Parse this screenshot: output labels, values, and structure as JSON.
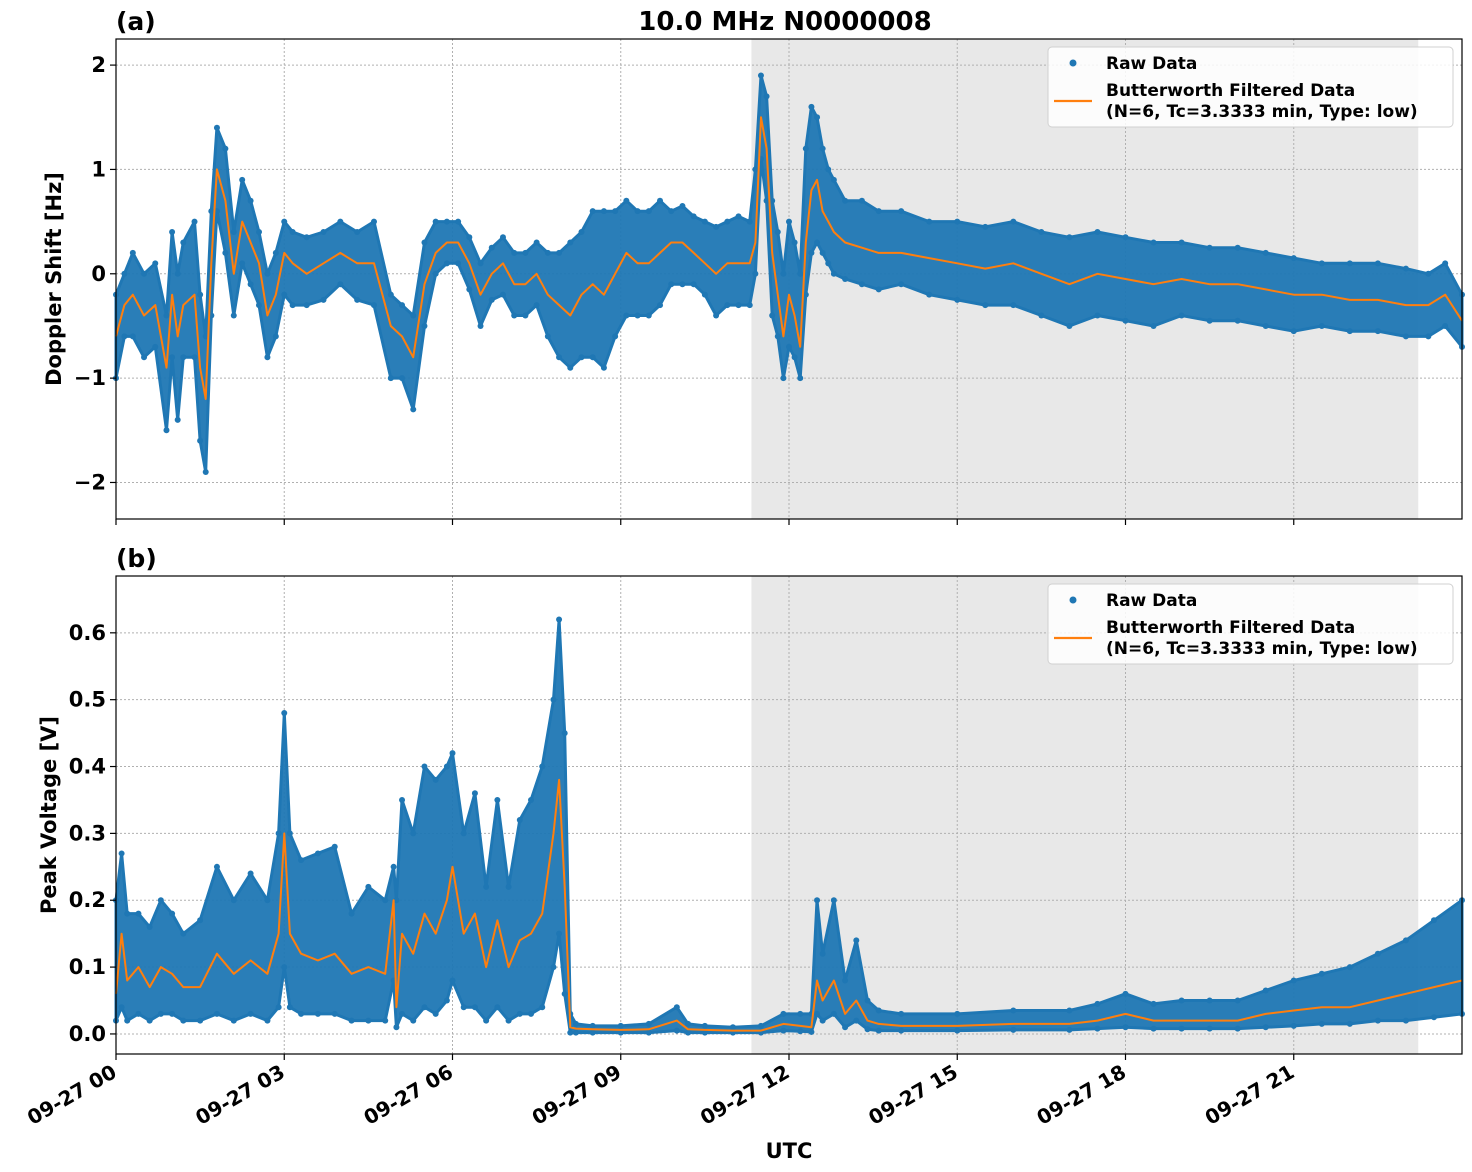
{
  "figure": {
    "title": "10.0 MHz N0000008",
    "xlabel": "UTC"
  },
  "colors": {
    "raw": "#1f77b4",
    "filtered": "#ff7f0e",
    "shade": "#e8e8e8"
  },
  "chart_data": [
    {
      "type": "scatter",
      "panel_label": "(a)",
      "ylabel": "Doppler Shift [Hz]",
      "xlim": [
        0,
        24
      ],
      "ylim": [
        -2.35,
        2.25
      ],
      "yticks": [
        -2,
        -1,
        0,
        1,
        2
      ],
      "ytick_labels": [
        "−2",
        "−1",
        "0",
        "1",
        "2"
      ],
      "xticks": [
        0,
        3,
        6,
        9,
        12,
        15,
        18,
        21
      ],
      "xtick_labels": [
        "09-27 00",
        "09-27 03",
        "09-27 06",
        "09-27 09",
        "09-27 12",
        "09-27 15",
        "09-27 18",
        "09-27 21"
      ],
      "show_xtick_labels": false,
      "shaded_region": [
        11.33,
        23.22
      ],
      "grid": true,
      "legend_position": "top-right",
      "legend": [
        {
          "kind": "marker",
          "label": "Raw Data"
        },
        {
          "kind": "line",
          "label": "Butterworth Filtered Data",
          "label2": "(N=6, Tc=3.3333 min, Type: low)"
        }
      ],
      "series": [
        {
          "name": "Butterworth Filtered Data",
          "style": "line",
          "x": [
            0,
            0.15,
            0.3,
            0.5,
            0.7,
            0.9,
            1.0,
            1.1,
            1.2,
            1.4,
            1.5,
            1.6,
            1.7,
            1.8,
            1.95,
            2.1,
            2.25,
            2.4,
            2.55,
            2.7,
            2.85,
            3.0,
            3.15,
            3.4,
            3.7,
            4.0,
            4.3,
            4.6,
            4.9,
            5.1,
            5.3,
            5.5,
            5.7,
            5.9,
            6.1,
            6.3,
            6.5,
            6.7,
            6.9,
            7.1,
            7.3,
            7.5,
            7.7,
            7.9,
            8.1,
            8.3,
            8.5,
            8.7,
            8.9,
            9.1,
            9.3,
            9.5,
            9.7,
            9.9,
            10.1,
            10.3,
            10.5,
            10.7,
            10.9,
            11.1,
            11.3,
            11.4,
            11.5,
            11.6,
            11.7,
            11.8,
            11.9,
            12.0,
            12.1,
            12.2,
            12.3,
            12.4,
            12.5,
            12.6,
            12.7,
            12.8,
            13.0,
            13.3,
            13.6,
            14.0,
            14.5,
            15.0,
            15.5,
            16.0,
            16.5,
            17.0,
            17.5,
            18.0,
            18.5,
            19.0,
            19.5,
            20.0,
            20.5,
            21.0,
            21.5,
            22.0,
            22.5,
            23.0,
            23.4,
            23.7,
            24.0
          ],
          "y": [
            -0.6,
            -0.3,
            -0.2,
            -0.4,
            -0.3,
            -0.9,
            -0.2,
            -0.6,
            -0.3,
            -0.2,
            -0.9,
            -1.2,
            0.1,
            1.0,
            0.7,
            0.0,
            0.5,
            0.3,
            0.1,
            -0.4,
            -0.2,
            0.2,
            0.1,
            0.0,
            0.1,
            0.2,
            0.1,
            0.1,
            -0.5,
            -0.6,
            -0.8,
            -0.1,
            0.2,
            0.3,
            0.3,
            0.1,
            -0.2,
            0.0,
            0.1,
            -0.1,
            -0.1,
            0.0,
            -0.2,
            -0.3,
            -0.4,
            -0.2,
            -0.1,
            -0.2,
            0.0,
            0.2,
            0.1,
            0.1,
            0.2,
            0.3,
            0.3,
            0.2,
            0.1,
            0.0,
            0.1,
            0.1,
            0.1,
            0.3,
            1.5,
            1.2,
            0.2,
            -0.2,
            -0.6,
            -0.2,
            -0.4,
            -0.7,
            0.3,
            0.8,
            0.9,
            0.6,
            0.5,
            0.4,
            0.3,
            0.25,
            0.2,
            0.2,
            0.15,
            0.1,
            0.05,
            0.1,
            0.0,
            -0.1,
            0.0,
            -0.05,
            -0.1,
            -0.05,
            -0.1,
            -0.1,
            -0.15,
            -0.2,
            -0.2,
            -0.25,
            -0.25,
            -0.3,
            -0.3,
            -0.2,
            -0.45
          ]
        },
        {
          "name": "Raw Data",
          "style": "band",
          "x": [
            0,
            0.15,
            0.3,
            0.5,
            0.7,
            0.9,
            1.0,
            1.1,
            1.2,
            1.4,
            1.5,
            1.6,
            1.7,
            1.8,
            1.95,
            2.1,
            2.25,
            2.4,
            2.55,
            2.7,
            2.85,
            3.0,
            3.15,
            3.4,
            3.7,
            4.0,
            4.3,
            4.6,
            4.9,
            5.1,
            5.3,
            5.5,
            5.7,
            5.9,
            6.1,
            6.3,
            6.5,
            6.7,
            6.9,
            7.1,
            7.3,
            7.5,
            7.7,
            7.9,
            8.1,
            8.3,
            8.5,
            8.7,
            8.9,
            9.1,
            9.3,
            9.5,
            9.7,
            9.9,
            10.1,
            10.3,
            10.5,
            10.7,
            10.9,
            11.1,
            11.3,
            11.4,
            11.5,
            11.6,
            11.7,
            11.8,
            11.9,
            12.0,
            12.1,
            12.2,
            12.3,
            12.4,
            12.5,
            12.6,
            12.7,
            12.8,
            13.0,
            13.3,
            13.6,
            14.0,
            14.5,
            15.0,
            15.5,
            16.0,
            16.5,
            17.0,
            17.5,
            18.0,
            18.5,
            19.0,
            19.5,
            20.0,
            20.5,
            21.0,
            21.5,
            22.0,
            22.5,
            23.0,
            23.4,
            23.7,
            24.0
          ],
          "upper": [
            -0.2,
            0.0,
            0.2,
            0.0,
            0.1,
            -0.4,
            0.4,
            0.0,
            0.3,
            0.5,
            -0.2,
            -0.6,
            0.6,
            1.4,
            1.2,
            0.4,
            0.9,
            0.7,
            0.4,
            0.0,
            0.2,
            0.5,
            0.4,
            0.35,
            0.4,
            0.5,
            0.4,
            0.5,
            -0.2,
            -0.3,
            -0.4,
            0.3,
            0.5,
            0.5,
            0.5,
            0.35,
            0.1,
            0.25,
            0.35,
            0.2,
            0.2,
            0.3,
            0.2,
            0.2,
            0.3,
            0.4,
            0.6,
            0.6,
            0.6,
            0.7,
            0.6,
            0.6,
            0.7,
            0.6,
            0.65,
            0.55,
            0.5,
            0.45,
            0.5,
            0.55,
            0.5,
            1.0,
            1.9,
            1.7,
            0.7,
            0.4,
            0.0,
            0.5,
            0.3,
            0.0,
            1.2,
            1.6,
            1.5,
            1.2,
            1.0,
            0.9,
            0.7,
            0.7,
            0.6,
            0.6,
            0.5,
            0.5,
            0.45,
            0.5,
            0.4,
            0.35,
            0.4,
            0.35,
            0.3,
            0.3,
            0.25,
            0.25,
            0.2,
            0.15,
            0.1,
            0.1,
            0.1,
            0.05,
            0.0,
            0.1,
            -0.2
          ],
          "lower": [
            -1.0,
            -0.6,
            -0.6,
            -0.8,
            -0.7,
            -1.5,
            -0.8,
            -1.4,
            -0.8,
            -0.8,
            -1.6,
            -1.9,
            -0.4,
            0.6,
            0.2,
            -0.4,
            0.1,
            -0.1,
            -0.3,
            -0.8,
            -0.6,
            -0.2,
            -0.3,
            -0.3,
            -0.25,
            -0.1,
            -0.25,
            -0.3,
            -1.0,
            -1.0,
            -1.3,
            -0.5,
            0.0,
            0.1,
            0.1,
            -0.15,
            -0.5,
            -0.25,
            -0.2,
            -0.4,
            -0.4,
            -0.3,
            -0.6,
            -0.8,
            -0.9,
            -0.8,
            -0.8,
            -0.9,
            -0.6,
            -0.4,
            -0.4,
            -0.4,
            -0.3,
            -0.1,
            -0.1,
            -0.1,
            -0.2,
            -0.4,
            -0.3,
            -0.3,
            -0.3,
            0.0,
            1.1,
            0.7,
            -0.4,
            -0.6,
            -1.0,
            -0.7,
            -0.8,
            -1.0,
            -0.2,
            0.2,
            0.3,
            0.2,
            0.1,
            0.0,
            -0.05,
            -0.1,
            -0.15,
            -0.1,
            -0.2,
            -0.25,
            -0.3,
            -0.3,
            -0.4,
            -0.5,
            -0.4,
            -0.45,
            -0.5,
            -0.4,
            -0.45,
            -0.45,
            -0.5,
            -0.55,
            -0.5,
            -0.55,
            -0.55,
            -0.6,
            -0.6,
            -0.5,
            -0.7
          ]
        }
      ]
    },
    {
      "type": "scatter",
      "panel_label": "(b)",
      "ylabel": "Peak Voltage [V]",
      "xlim": [
        0,
        24
      ],
      "ylim": [
        -0.03,
        0.685
      ],
      "yticks": [
        0.0,
        0.1,
        0.2,
        0.3,
        0.4,
        0.5,
        0.6
      ],
      "ytick_labels": [
        "0.0",
        "0.1",
        "0.2",
        "0.3",
        "0.4",
        "0.5",
        "0.6"
      ],
      "xticks": [
        0,
        3,
        6,
        9,
        12,
        15,
        18,
        21
      ],
      "xtick_labels": [
        "09-27 00",
        "09-27 03",
        "09-27 06",
        "09-27 09",
        "09-27 12",
        "09-27 15",
        "09-27 18",
        "09-27 21"
      ],
      "show_xtick_labels": true,
      "shaded_region": [
        11.33,
        23.22
      ],
      "grid": true,
      "legend_position": "top-right",
      "legend": [
        {
          "kind": "marker",
          "label": "Raw Data"
        },
        {
          "kind": "line",
          "label": "Butterworth Filtered Data",
          "label2": "(N=6, Tc=3.3333 min, Type: low)"
        }
      ],
      "series": [
        {
          "name": "Butterworth Filtered Data",
          "style": "line",
          "x": [
            0,
            0.1,
            0.2,
            0.4,
            0.6,
            0.8,
            1.0,
            1.2,
            1.5,
            1.8,
            2.1,
            2.4,
            2.7,
            2.9,
            3.0,
            3.1,
            3.3,
            3.6,
            3.9,
            4.2,
            4.5,
            4.8,
            4.95,
            5.0,
            5.1,
            5.3,
            5.5,
            5.7,
            5.9,
            6.0,
            6.2,
            6.4,
            6.6,
            6.8,
            7.0,
            7.2,
            7.4,
            7.6,
            7.8,
            7.9,
            8.0,
            8.1,
            8.2,
            8.5,
            9.0,
            9.5,
            10.0,
            10.2,
            10.5,
            11.0,
            11.5,
            11.9,
            12.2,
            12.4,
            12.5,
            12.6,
            12.8,
            13.0,
            13.2,
            13.4,
            13.6,
            14.0,
            15.0,
            16.0,
            17.0,
            17.5,
            18.0,
            18.5,
            19.0,
            19.5,
            20.0,
            20.5,
            21.0,
            21.5,
            22.0,
            22.5,
            23.0,
            23.5,
            24.0
          ],
          "y": [
            0.06,
            0.15,
            0.08,
            0.1,
            0.07,
            0.1,
            0.09,
            0.07,
            0.07,
            0.12,
            0.09,
            0.11,
            0.09,
            0.15,
            0.3,
            0.15,
            0.12,
            0.11,
            0.12,
            0.09,
            0.1,
            0.09,
            0.2,
            0.04,
            0.15,
            0.12,
            0.18,
            0.15,
            0.2,
            0.25,
            0.15,
            0.18,
            0.1,
            0.17,
            0.1,
            0.14,
            0.15,
            0.18,
            0.3,
            0.38,
            0.22,
            0.01,
            0.008,
            0.007,
            0.006,
            0.007,
            0.02,
            0.007,
            0.006,
            0.005,
            0.005,
            0.015,
            0.012,
            0.01,
            0.08,
            0.05,
            0.08,
            0.03,
            0.05,
            0.02,
            0.015,
            0.012,
            0.012,
            0.015,
            0.015,
            0.02,
            0.03,
            0.02,
            0.02,
            0.02,
            0.02,
            0.03,
            0.035,
            0.04,
            0.04,
            0.05,
            0.06,
            0.07,
            0.08
          ]
        },
        {
          "name": "Raw Data",
          "style": "band",
          "x": [
            0,
            0.1,
            0.2,
            0.4,
            0.6,
            0.8,
            1.0,
            1.2,
            1.5,
            1.8,
            2.1,
            2.4,
            2.7,
            2.9,
            3.0,
            3.1,
            3.3,
            3.6,
            3.9,
            4.2,
            4.5,
            4.8,
            4.95,
            5.0,
            5.1,
            5.3,
            5.5,
            5.7,
            5.9,
            6.0,
            6.2,
            6.4,
            6.6,
            6.8,
            7.0,
            7.2,
            7.4,
            7.6,
            7.8,
            7.9,
            8.0,
            8.1,
            8.2,
            8.5,
            9.0,
            9.5,
            10.0,
            10.2,
            10.5,
            11.0,
            11.5,
            11.9,
            12.2,
            12.4,
            12.5,
            12.6,
            12.8,
            13.0,
            13.2,
            13.4,
            13.6,
            14.0,
            15.0,
            16.0,
            17.0,
            17.5,
            18.0,
            18.5,
            19.0,
            19.5,
            20.0,
            20.5,
            21.0,
            21.5,
            22.0,
            22.5,
            23.0,
            23.5,
            24.0
          ],
          "upper": [
            0.2,
            0.27,
            0.18,
            0.18,
            0.16,
            0.2,
            0.18,
            0.15,
            0.17,
            0.25,
            0.2,
            0.24,
            0.2,
            0.3,
            0.48,
            0.3,
            0.26,
            0.27,
            0.28,
            0.18,
            0.22,
            0.2,
            0.25,
            0.2,
            0.35,
            0.3,
            0.4,
            0.38,
            0.4,
            0.42,
            0.3,
            0.36,
            0.22,
            0.35,
            0.22,
            0.32,
            0.35,
            0.4,
            0.5,
            0.62,
            0.45,
            0.03,
            0.015,
            0.012,
            0.012,
            0.015,
            0.04,
            0.015,
            0.012,
            0.01,
            0.012,
            0.03,
            0.03,
            0.03,
            0.2,
            0.12,
            0.2,
            0.08,
            0.14,
            0.05,
            0.035,
            0.03,
            0.03,
            0.035,
            0.035,
            0.045,
            0.06,
            0.045,
            0.05,
            0.05,
            0.05,
            0.065,
            0.08,
            0.09,
            0.1,
            0.12,
            0.14,
            0.17,
            0.2
          ],
          "lower": [
            0.02,
            0.04,
            0.02,
            0.03,
            0.02,
            0.03,
            0.03,
            0.02,
            0.02,
            0.03,
            0.02,
            0.03,
            0.02,
            0.04,
            0.1,
            0.04,
            0.03,
            0.03,
            0.03,
            0.02,
            0.02,
            0.02,
            0.08,
            0.01,
            0.03,
            0.02,
            0.04,
            0.03,
            0.05,
            0.08,
            0.04,
            0.04,
            0.02,
            0.04,
            0.02,
            0.03,
            0.03,
            0.04,
            0.1,
            0.15,
            0.06,
            0.002,
            0.002,
            0.002,
            0.002,
            0.002,
            0.005,
            0.002,
            0.002,
            0.002,
            0.002,
            0.005,
            0.004,
            0.003,
            0.03,
            0.02,
            0.03,
            0.01,
            0.02,
            0.007,
            0.005,
            0.005,
            0.005,
            0.006,
            0.006,
            0.008,
            0.01,
            0.008,
            0.008,
            0.008,
            0.008,
            0.01,
            0.012,
            0.015,
            0.015,
            0.02,
            0.02,
            0.025,
            0.03
          ]
        }
      ]
    }
  ]
}
